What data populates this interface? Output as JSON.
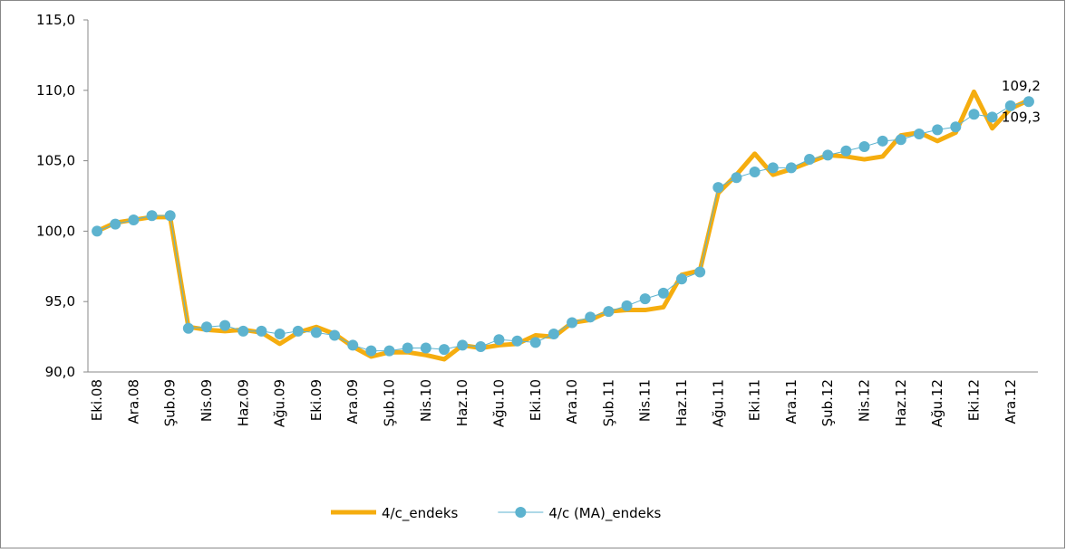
{
  "chart_data": {
    "type": "line",
    "categories": [
      "Eki.08",
      null,
      "Ara.08",
      null,
      "Şub.09",
      null,
      "Nis.09",
      null,
      "Haz.09",
      null,
      "Ağu.09",
      null,
      "Eki.09",
      null,
      "Ara.09",
      null,
      "Şub.10",
      null,
      "Nis.10",
      null,
      "Haz.10",
      null,
      "Ağu.10",
      null,
      "Eki.10",
      null,
      "Ara.10",
      null,
      "Şub.11",
      null,
      "Nis.11",
      null,
      "Haz.11",
      null,
      "Ağu.11",
      null,
      "Eki.11",
      null,
      "Ara.11",
      null,
      "Şub.12",
      null,
      "Nis.12",
      null,
      "Haz.12",
      null,
      "Ağu.12",
      null,
      "Eki.12",
      null,
      "Ara.12",
      null
    ],
    "series": [
      {
        "name": "4/c_endeks",
        "color": "#f5ad0f",
        "marker": false,
        "values": [
          100.0,
          100.6,
          100.8,
          101.0,
          101.0,
          93.2,
          93.0,
          92.9,
          93.0,
          92.8,
          92.0,
          92.8,
          93.2,
          92.7,
          91.8,
          91.1,
          91.4,
          91.4,
          91.2,
          90.9,
          91.9,
          91.7,
          91.9,
          92.0,
          92.6,
          92.5,
          93.5,
          93.7,
          94.3,
          94.4,
          94.4,
          94.6,
          96.9,
          97.2,
          102.7,
          104.0,
          105.5,
          104.0,
          104.4,
          104.9,
          105.4,
          105.3,
          105.1,
          105.3,
          106.8,
          107.0,
          106.4,
          107.0,
          109.9,
          107.3,
          108.7,
          109.3
        ],
        "value_labels": [
          null,
          null,
          null,
          null,
          null,
          null,
          null,
          null,
          null,
          null,
          null,
          null,
          null,
          null,
          null,
          null,
          null,
          null,
          null,
          null,
          null,
          null,
          null,
          null,
          null,
          null,
          null,
          null,
          null,
          null,
          null,
          null,
          null,
          null,
          null,
          null,
          null,
          null,
          null,
          null,
          null,
          null,
          null,
          null,
          null,
          null,
          null,
          null,
          null,
          null,
          null,
          "109,3"
        ]
      },
      {
        "name": "4/c (MA)_endeks",
        "color": "#5db3cf",
        "marker": true,
        "values": [
          100.0,
          100.5,
          100.8,
          101.1,
          101.1,
          93.1,
          93.2,
          93.3,
          92.9,
          92.9,
          92.7,
          92.9,
          92.8,
          92.6,
          91.9,
          91.5,
          91.5,
          91.7,
          91.7,
          91.6,
          91.9,
          91.8,
          92.3,
          92.2,
          92.1,
          92.7,
          93.5,
          93.9,
          94.3,
          94.7,
          95.2,
          95.6,
          96.6,
          97.1,
          103.1,
          103.8,
          104.2,
          104.5,
          104.5,
          105.1,
          105.4,
          105.7,
          106.0,
          106.4,
          106.5,
          106.9,
          107.2,
          107.4,
          108.3,
          108.1,
          108.9,
          109.2
        ],
        "value_labels": [
          null,
          null,
          null,
          null,
          null,
          null,
          null,
          null,
          null,
          null,
          null,
          null,
          null,
          null,
          null,
          null,
          null,
          null,
          null,
          null,
          null,
          null,
          null,
          null,
          null,
          null,
          null,
          null,
          null,
          null,
          null,
          null,
          null,
          null,
          null,
          null,
          null,
          null,
          null,
          null,
          null,
          null,
          null,
          null,
          null,
          null,
          null,
          null,
          null,
          null,
          null,
          "109,2"
        ]
      }
    ],
    "ylim": [
      90,
      115
    ],
    "yticks": [
      {
        "value": 90,
        "label": "90,0"
      },
      {
        "value": 95,
        "label": "95,0"
      },
      {
        "value": 100,
        "label": "100,0"
      },
      {
        "value": 105,
        "label": "105,0"
      },
      {
        "value": 110,
        "label": "110,0"
      },
      {
        "value": 115,
        "label": "115,0"
      }
    ],
    "grid": false,
    "legend": "bottom"
  }
}
